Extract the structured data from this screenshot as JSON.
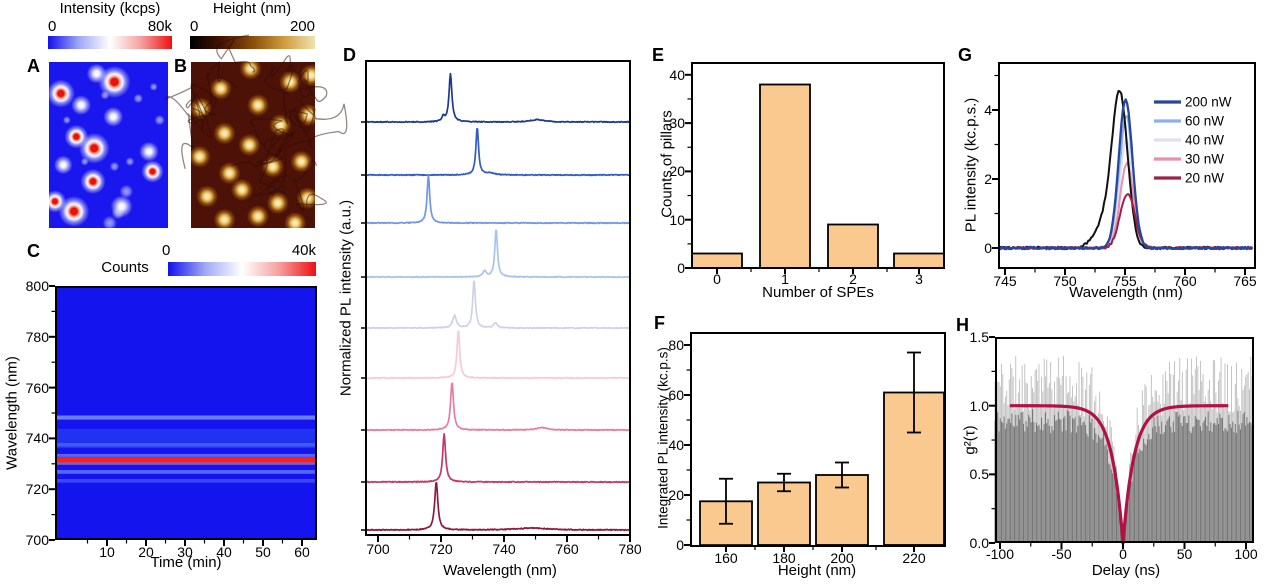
{
  "figure": {
    "background": "#ffffff"
  },
  "chart_data": [
    {
      "id": "A",
      "type": "heatmap",
      "description": "confocal PL intensity map with bright emitter spots",
      "colorbar": {
        "label": "Intensity (kcps)",
        "min": "0",
        "max": "80k",
        "colors": [
          "#1111ee",
          "#9fa8f5",
          "#ffffff",
          "#f5a0a0",
          "#ee1111"
        ]
      },
      "background": "#1a16ee",
      "spots": {
        "red": [
          [
            55,
            12,
            1.15
          ],
          [
            10,
            19,
            1.0
          ],
          [
            23,
            45,
            0.85
          ],
          [
            38,
            52,
            1.1
          ],
          [
            37,
            72,
            0.9
          ],
          [
            87,
            66,
            0.8
          ],
          [
            5,
            84,
            0.8
          ],
          [
            21,
            90,
            1.1
          ]
        ],
        "white": [
          [
            61,
            87,
            1.0
          ],
          [
            40,
            7,
            0.9
          ],
          [
            54,
            33,
            0.9
          ],
          [
            27,
            26,
            0.9
          ],
          [
            12,
            62,
            0.85
          ],
          [
            84,
            54,
            0.9
          ]
        ],
        "faint": [
          [
            65,
            78,
            0.85
          ],
          [
            51,
            97,
            0.9
          ],
          [
            75,
            22,
            0.6
          ],
          [
            93,
            35,
            0.65
          ],
          [
            47,
            20,
            0.55
          ],
          [
            68,
            60,
            0.55
          ],
          [
            30,
            60,
            0.5
          ],
          [
            55,
            63,
            0.6
          ],
          [
            88,
            15,
            0.5
          ],
          [
            15,
            35,
            0.5
          ],
          [
            58,
            91,
            0.8
          ]
        ]
      }
    },
    {
      "id": "B",
      "type": "heatmap",
      "description": "AFM height map of pillar array",
      "colorbar": {
        "label": "Height (nm)",
        "min": "0",
        "max": "200",
        "colors": [
          "#000000",
          "#431303",
          "#8a4d0a",
          "#cf9b3e",
          "#efe3ae"
        ]
      },
      "background": "#4d1207",
      "crack_color": "#2e0a04",
      "dots": [
        [
          48,
          4
        ],
        [
          80,
          12
        ],
        [
          24,
          16
        ],
        [
          8,
          28
        ],
        [
          54,
          26
        ],
        [
          95,
          32
        ],
        [
          72,
          38
        ],
        [
          27,
          43
        ],
        [
          47,
          50
        ],
        [
          7,
          57
        ],
        [
          89,
          60
        ],
        [
          31,
          67
        ],
        [
          66,
          63
        ],
        [
          13,
          81
        ],
        [
          41,
          77
        ],
        [
          70,
          85
        ],
        [
          94,
          82
        ],
        [
          27,
          95
        ],
        [
          54,
          93
        ],
        [
          84,
          97
        ],
        [
          97,
          8
        ]
      ]
    },
    {
      "id": "C",
      "type": "heatmap",
      "xlabel": "Time (min)",
      "ylabel": "Wavelength (nm)",
      "x_ticks": [
        10,
        20,
        30,
        40,
        50,
        60
      ],
      "y_ticks": [
        700,
        720,
        740,
        760,
        780,
        800
      ],
      "x_range": [
        -3.3,
        63.9
      ],
      "y_range": [
        700,
        800
      ],
      "colorbar": {
        "label": "Counts",
        "min": "0",
        "max": "40k",
        "colors": [
          "#1111ee",
          "#9fa8f5",
          "#ffffff",
          "#f5a0a0",
          "#ee1111"
        ]
      },
      "background": "#1414ee",
      "bands": [
        [
          748.2,
          0.8,
          "#8099ff",
          0.8
        ],
        [
          740.0,
          3.8,
          "#2133f2",
          1
        ],
        [
          737.5,
          0.7,
          "#5f7cf8",
          0.55
        ],
        [
          733.3,
          0.6,
          "#9fb0ff",
          0.5
        ],
        [
          731.6,
          1.05,
          "#ff2010",
          1
        ],
        [
          730.1,
          0.5,
          "#ffb9c4",
          0.45
        ],
        [
          726.8,
          0.75,
          "#7f9bff",
          0.6
        ],
        [
          723.3,
          0.7,
          "#6b85ff",
          0.45
        ]
      ]
    },
    {
      "id": "D",
      "type": "line-stack",
      "xlabel": "Wavelength (nm)",
      "ylabel": "Normalized PL intensity (a.u.)",
      "x_ticks": [
        700,
        720,
        740,
        760,
        780
      ],
      "x_range": [
        695.9,
        780.3
      ],
      "traces": [
        {
          "color": "#1b3a8f",
          "peaks": [
            [
              723,
              1,
              0.55
            ],
            [
              720.7,
              0.1,
              0.5
            ],
            [
              750.5,
              0.05,
              2.5
            ]
          ]
        },
        {
          "color": "#2f5cc4",
          "peaks": [
            [
              731.5,
              1,
              0.5
            ],
            [
              735.5,
              0.04,
              1.5
            ]
          ]
        },
        {
          "color": "#6f97e3",
          "peaks": [
            [
              716,
              1,
              0.5
            ]
          ]
        },
        {
          "color": "#a9c3ee",
          "peaks": [
            [
              737.5,
              1,
              0.5
            ],
            [
              733.8,
              0.13,
              0.6
            ]
          ]
        },
        {
          "color": "#cdd2e8",
          "peaks": [
            [
              730.5,
              1,
              0.5
            ],
            [
              724.3,
              0.26,
              0.7
            ],
            [
              737.3,
              0.1,
              0.7
            ]
          ]
        },
        {
          "color": "#f7c9d9",
          "peaks": [
            [
              725.5,
              1,
              0.5
            ]
          ]
        },
        {
          "color": "#e87ba2",
          "peaks": [
            [
              723.5,
              1,
              0.55
            ],
            [
              752,
              0.05,
              2
            ]
          ]
        },
        {
          "color": "#c43766",
          "peaks": [
            [
              721,
              1,
              0.55
            ]
          ]
        },
        {
          "color": "#8f1a3d",
          "peaks": [
            [
              718.5,
              1,
              0.6
            ],
            [
              749,
              0.04,
              6
            ]
          ]
        }
      ]
    },
    {
      "id": "E",
      "type": "bar",
      "xlabel": "Number of SPEs",
      "ylabel": "Counts of pillars",
      "categories": [
        "0",
        "1",
        "2",
        "3"
      ],
      "values": [
        3,
        38,
        9,
        3
      ],
      "y_ticks": [
        0,
        10,
        20,
        30,
        40
      ],
      "ylim": [
        0,
        42.5
      ],
      "bar_color": "#f9c98f",
      "bar_edge": "#000000"
    },
    {
      "id": "F",
      "type": "bar",
      "xlabel": "Height (nm)",
      "ylabel": "Integrated PL intensity (kc.p.s)",
      "categories": [
        "160",
        "180",
        "200",
        "220"
      ],
      "values": [
        17.5,
        25,
        28,
        61
      ],
      "errors": [
        9,
        3.5,
        5,
        16
      ],
      "y_ticks": [
        0,
        20,
        40,
        60,
        80
      ],
      "ylim": [
        0,
        86
      ],
      "bar_color": "#f9c98f",
      "bar_edge": "#000000"
    },
    {
      "id": "G",
      "type": "line",
      "xlabel": "Wavelength (nm)",
      "ylabel": "PL intensity (kc.p.s.)",
      "x_ticks": [
        745,
        750,
        755,
        760,
        765
      ],
      "y_ticks": [
        0,
        2,
        4
      ],
      "x_range": [
        744.5,
        765.7
      ],
      "ylim": [
        -0.6,
        5.4
      ],
      "series": [
        {
          "name": "",
          "color": "#111111",
          "gaussians": [
            [
              754.6,
              4.05,
              1.5
            ],
            [
              753.6,
              0.9,
              2.2
            ]
          ]
        },
        {
          "name": "200 nW",
          "color": "#27479e",
          "gaussians": [
            [
              755.05,
              4.3,
              1.35
            ]
          ]
        },
        {
          "name": "60 nW",
          "color": "#8cb0e8",
          "gaussians": [
            [
              755.1,
              3.85,
              1.25
            ]
          ]
        },
        {
          "name": "40 nW",
          "color": "#dde2ef",
          "gaussians": [
            [
              755.1,
              3.15,
              1.25
            ]
          ]
        },
        {
          "name": "30 nW",
          "color": "#ec8fab",
          "gaussians": [
            [
              755.15,
              2.45,
              1.3
            ]
          ]
        },
        {
          "name": "20 nW",
          "color": "#9e2047",
          "gaussians": [
            [
              755.2,
              1.58,
              1.45
            ]
          ]
        }
      ],
      "legend": [
        "200 nW",
        "60 nW",
        "40 nW",
        "30 nW",
        "20 nW"
      ]
    },
    {
      "id": "H",
      "type": "histogram",
      "xlabel": "Delay (ns)",
      "ylabel": "g²(τ)",
      "x_ticks": [
        -100,
        -50,
        0,
        50,
        100
      ],
      "y_tick_labels": [
        "0.0",
        "0.5",
        "1.0",
        "1.5"
      ],
      "x_range": [
        -105,
        107
      ],
      "ylim": [
        0,
        1.5
      ],
      "fit": {
        "color": "#b11245",
        "baseline": 1.0,
        "tau_ns": 9,
        "dip_min": 0,
        "t_span": [
          -92,
          86
        ]
      },
      "hist": {
        "dark": "#767676",
        "light": "#bdbdbd",
        "mean": 1.0,
        "seed": 11
      }
    }
  ]
}
